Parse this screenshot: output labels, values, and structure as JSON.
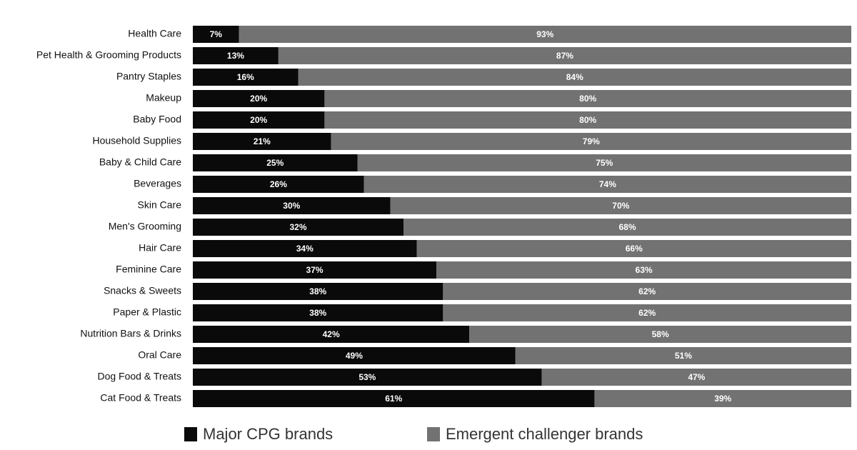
{
  "chart_data": {
    "type": "stacked-bar-horizontal",
    "categories": [
      "Health Care",
      "Pet Health & Grooming Products",
      "Pantry Staples",
      "Makeup",
      "Baby Food",
      "Household Supplies",
      "Baby & Child Care",
      "Beverages",
      "Skin Care",
      "Men's Grooming",
      "Hair Care",
      "Feminine Care",
      "Snacks & Sweets",
      "Paper & Plastic",
      "Nutrition Bars & Drinks",
      "Oral Care",
      "Dog Food & Treats",
      "Cat Food & Treats"
    ],
    "series": [
      {
        "name": "Major CPG brands",
        "color": "#0a0a0a",
        "values": [
          7,
          13,
          16,
          20,
          20,
          21,
          25,
          26,
          30,
          32,
          34,
          37,
          38,
          38,
          42,
          49,
          53,
          61
        ],
        "value_labels": [
          "7%",
          "13%",
          "16%",
          "20%",
          "20%",
          "21%",
          "25%",
          "26%",
          "30%",
          "32%",
          "34%",
          "37%",
          "38%",
          "38%",
          "42%",
          "49%",
          "53%",
          "61%"
        ]
      },
      {
        "name": "Emergent challenger brands",
        "color": "#727272",
        "values": [
          93,
          87,
          84,
          80,
          80,
          79,
          75,
          74,
          70,
          68,
          66,
          63,
          62,
          62,
          58,
          51,
          47,
          39
        ],
        "value_labels": [
          "93%",
          "87%",
          "84%",
          "80%",
          "80%",
          "79%",
          "75%",
          "74%",
          "70%",
          "68%",
          "66%",
          "63%",
          "62%",
          "62%",
          "58%",
          "51%",
          "47%",
          "39%"
        ]
      }
    ],
    "legend": "bottom"
  }
}
